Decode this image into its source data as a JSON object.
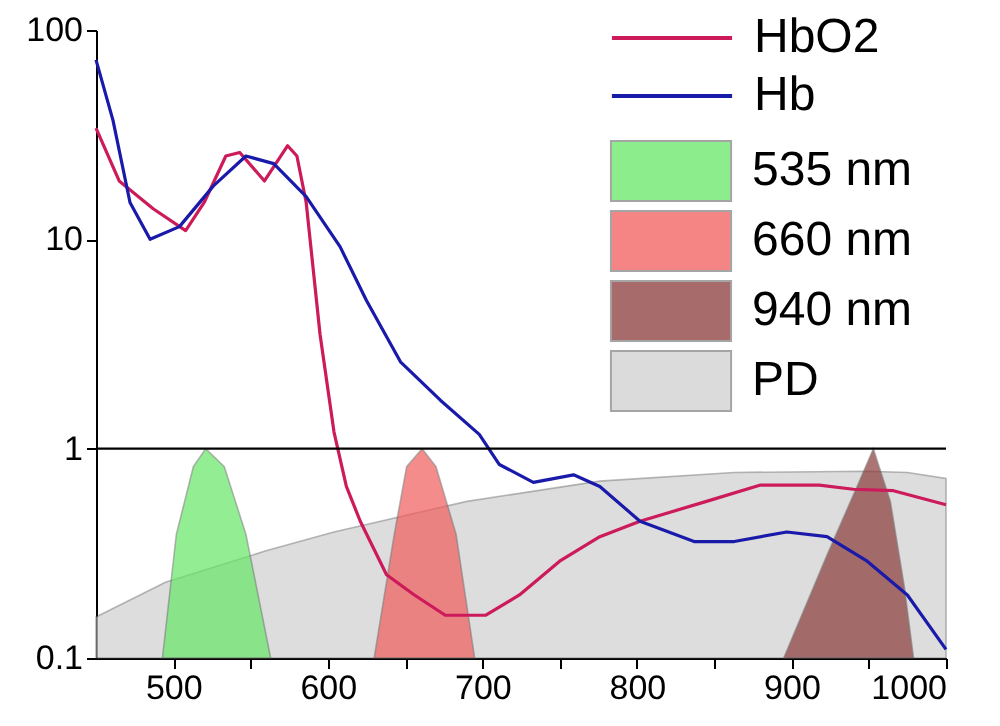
{
  "chart_data": {
    "type": "line",
    "xlim": [
      450,
      1000
    ],
    "xticks": [
      500,
      {
        "value": 550,
        "label": null
      },
      600,
      {
        "value": 650,
        "label": null
      },
      700,
      {
        "value": 750,
        "label": null
      },
      800,
      {
        "value": 850,
        "label": null
      },
      900,
      {
        "value": 950,
        "label": null
      },
      1000
    ],
    "ylim": [
      0.1,
      100
    ],
    "yticks": [
      0.1,
      1,
      10,
      100
    ],
    "log": "y",
    "grid": false,
    "legend": "top right",
    "marker": "none",
    "line_style": "solid",
    "ref_lines": [
      {
        "axis": "y",
        "value": 1,
        "color": "#000000"
      }
    ],
    "series": [
      {
        "name": "HbO2",
        "color": "#cc1a5a",
        "x": [
          450,
          465,
          487,
          508,
          520,
          534,
          543,
          559,
          574,
          580,
          586,
          595,
          604,
          612,
          621,
          638,
          656,
          676,
          702,
          724,
          750,
          776,
          802,
          845,
          880,
          918,
          940,
          966,
          1000
        ],
        "values": [
          34,
          19,
          14,
          11,
          15,
          25,
          26,
          19,
          28,
          25,
          15,
          3.5,
          1.2,
          0.66,
          0.45,
          0.25,
          0.2,
          0.16,
          0.16,
          0.2,
          0.29,
          0.38,
          0.45,
          0.56,
          0.67,
          0.67,
          0.64,
          0.63,
          0.54
        ]
      },
      {
        "name": "Hb",
        "color": "#1a1aaa",
        "x": [
          450,
          461,
          472,
          485,
          504,
          526,
          547,
          565,
          586,
          608,
          625,
          647,
          673,
          698,
          711,
          733,
          759,
          776,
          802,
          837,
          863,
          897,
          923,
          949,
          975,
          1000
        ],
        "values": [
          72,
          37,
          15,
          10,
          11.5,
          18,
          25,
          23,
          16,
          9.2,
          5.1,
          2.6,
          1.7,
          1.17,
          0.84,
          0.69,
          0.75,
          0.66,
          0.45,
          0.36,
          0.36,
          0.4,
          0.38,
          0.29,
          0.2,
          0.11
        ]
      },
      {
        "name": "535 nm",
        "type": "area",
        "color": "#66e866",
        "x": [
          493,
          502,
          513,
          521,
          533,
          547,
          563
        ],
        "values": [
          0.1,
          0.39,
          0.82,
          1,
          0.82,
          0.39,
          0.1
        ]
      },
      {
        "name": "660 nm",
        "type": "area",
        "color": "#f25c5c",
        "x": [
          630,
          643,
          651,
          661,
          670,
          683,
          695
        ],
        "values": [
          0.1,
          0.39,
          0.82,
          1,
          0.82,
          0.39,
          0.1
        ]
      },
      {
        "name": "940 nm",
        "type": "area",
        "color": "#8b3a3a",
        "x": [
          895,
          923,
          944,
          953,
          964,
          973,
          979
        ],
        "values": [
          0.1,
          0.31,
          0.7,
          1,
          0.56,
          0.22,
          0.1
        ]
      },
      {
        "name": "PD",
        "type": "area",
        "color": "#d0d0d0",
        "x": [
          450,
          495,
          560,
          604,
          690,
          776,
          863,
          949,
          975,
          1000
        ],
        "values": [
          0.157,
          0.23,
          0.325,
          0.4,
          0.56,
          0.7,
          0.77,
          0.78,
          0.77,
          0.72
        ]
      }
    ]
  }
}
